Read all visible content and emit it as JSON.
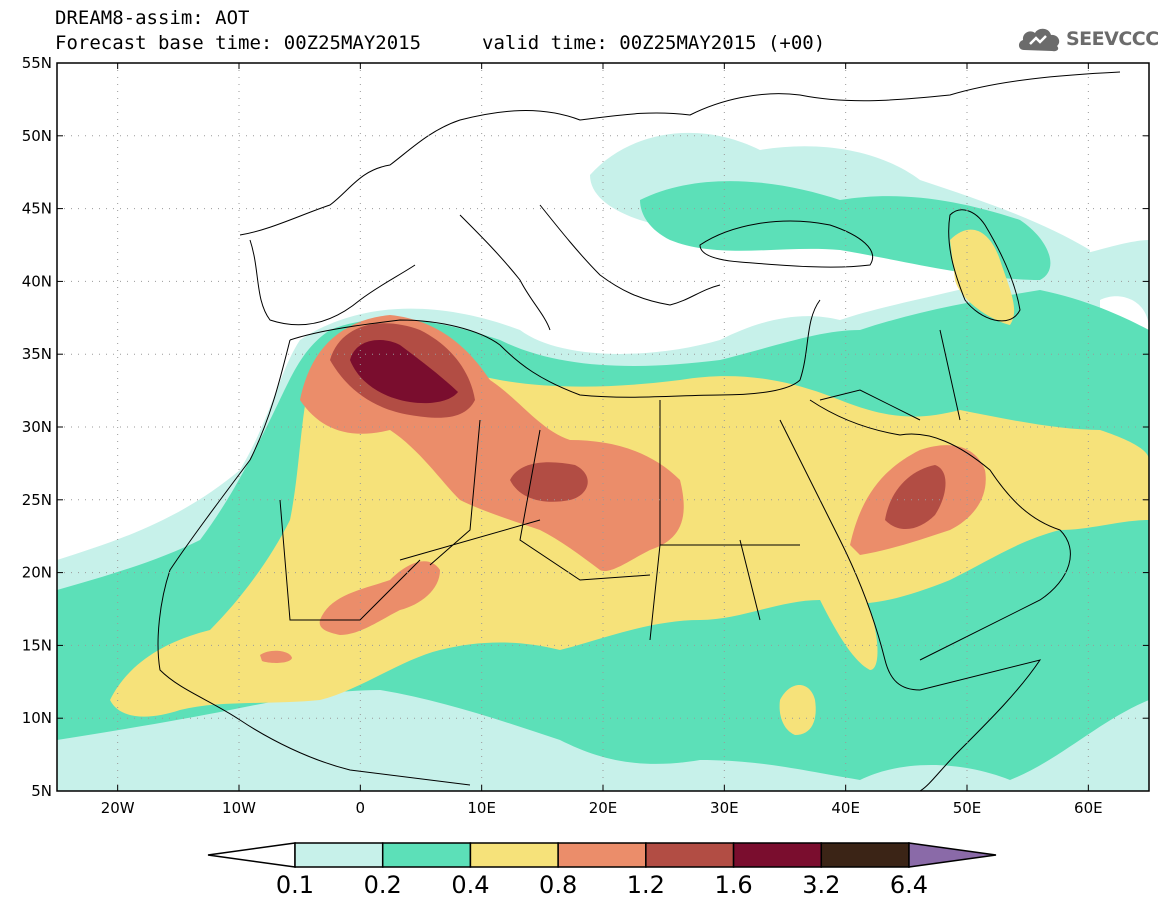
{
  "header": {
    "title": "DREAM8-assim: AOT",
    "forecast": "Forecast base time: 00Z25MAY2015",
    "valid": "valid time: 00Z25MAY2015 (+00)",
    "logo_text": "SEEVCCC",
    "logo_icon": "cloud-icon"
  },
  "map": {
    "variable": "AOT",
    "lon_range": [
      -25,
      65
    ],
    "lat_range": [
      5,
      55
    ],
    "lat_labels": [
      "55N",
      "50N",
      "45N",
      "40N",
      "35N",
      "30N",
      "25N",
      "20N",
      "15N",
      "10N",
      "5N"
    ],
    "lon_labels": [
      "20W",
      "10W",
      "0",
      "10E",
      "20E",
      "30E",
      "40E",
      "50E",
      "60E"
    ],
    "grid": "dotted",
    "background": "#ffffff"
  },
  "colorbar": {
    "colors": [
      "#ffffff",
      "#c7f1ea",
      "#5ce0b8",
      "#f6e27a",
      "#eb8d6a",
      "#b24d44",
      "#7a0d2e",
      "#3b2416",
      "#8a6aa8"
    ],
    "labels": [
      "0.1",
      "0.2",
      "0.4",
      "0.8",
      "1.2",
      "1.6",
      "3.2",
      "6.4"
    ]
  }
}
